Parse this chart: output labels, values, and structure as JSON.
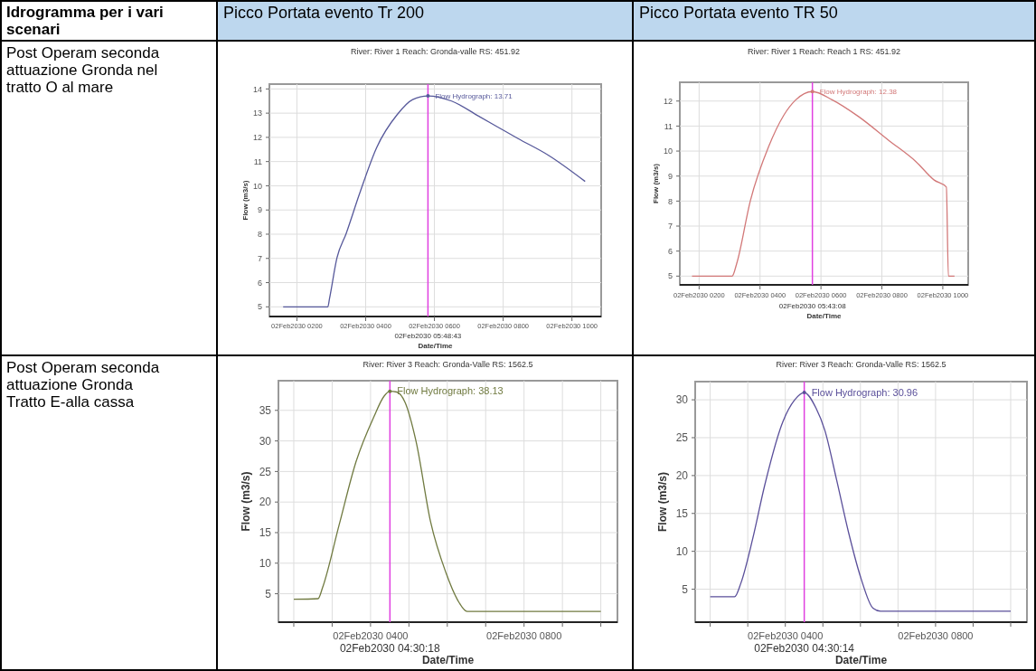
{
  "chart_data": [
    {
      "type": "other",
      "annotations": [
        "Idrogramma per i vari scenari",
        "Picco Portata evento Tr 200",
        "Picco Portata evento TR 50",
        "Post Operam seconda attuazione Gronda nel tratto O al mare",
        "Post Operam seconda attuazione Gronda Tratto E-alla cassa"
      ]
    },
    {
      "type": "line",
      "title": "River: River 1  Reach: Gronda-valle  RS: 451.92",
      "xlabel": "Date/Time",
      "ylabel": "Flow (m3/s)",
      "x": [
        "2030-02-02T01:36",
        "2030-02-02T02:54",
        "2030-02-02T02:57",
        "2030-02-02T03:10",
        "2030-02-02T03:26",
        "2030-02-02T03:49",
        "2030-02-02T04:19",
        "2030-02-02T04:55",
        "2030-02-02T05:22",
        "2030-02-02T05:48:43",
        "2030-02-02T06:30",
        "2030-02-02T07:17",
        "2030-02-02T07:54",
        "2030-02-02T08:26",
        "2030-02-02T09:19",
        "2030-02-02T10:23"
      ],
      "series": [
        {
          "color": "#56589a",
          "values": [
            5,
            5,
            5.35,
            7.03,
            8.03,
            9.65,
            11.57,
            12.94,
            13.56,
            13.71,
            13.5,
            12.88,
            12.38,
            11.95,
            11.26,
            10.18
          ]
        }
      ],
      "xlim": [
        "2030-02-02T01:12",
        "2030-02-02T10:51"
      ],
      "ylim": [
        4.6,
        14.2
      ],
      "xticks": [
        {
          "value": "2030-02-02T02:00",
          "label": "02Feb2030 0200"
        },
        {
          "value": "2030-02-02T04:00",
          "label": "02Feb2030 0400"
        },
        {
          "value": "2030-02-02T06:00",
          "label": "02Feb2030 0600"
        },
        {
          "value": "2030-02-02T08:00",
          "label": "02Feb2030 0800"
        },
        {
          "value": "2030-02-02T10:00",
          "label": "02Feb2030 1000"
        }
      ],
      "yticks": [
        5,
        6,
        7,
        8,
        9,
        10,
        11,
        12,
        13,
        14
      ],
      "grid": true,
      "ref_lines": [
        {
          "axis": "x",
          "value": "2030-02-02T05:48:43",
          "label": "02Feb2030 05:48:43",
          "color": "#e040e0"
        }
      ],
      "annotations": [
        {
          "text": "Flow Hydrograph: 13.71",
          "x": "2030-02-02T05:48:43",
          "y": 13.71
        }
      ]
    },
    {
      "type": "line",
      "title": "River: River 1  Reach: Reach 1  RS: 451.92",
      "xlabel": "Date/Time",
      "ylabel": "Flow (m3/s)",
      "x": [
        "2030-02-02T01:46",
        "2030-02-02T03:05",
        "2030-02-02T03:14",
        "2030-02-02T03:41",
        "2030-02-02T04:17",
        "2030-02-02T04:47",
        "2030-02-02T05:10",
        "2030-02-02T05:43:08",
        "2030-02-02T06:22",
        "2030-02-02T07:14",
        "2030-02-02T08:14",
        "2030-02-02T09:07",
        "2030-02-02T09:43",
        "2030-02-02T10:07",
        "2030-02-02T10:11",
        "2030-02-02T10:23"
      ],
      "series": [
        {
          "color": "#d27878",
          "values": [
            5,
            5,
            5.5,
            8.02,
            10.18,
            11.44,
            12.04,
            12.38,
            12.05,
            11.38,
            10.42,
            9.58,
            8.84,
            8.56,
            5,
            5
          ]
        }
      ],
      "xlim": [
        "2030-02-02T01:22",
        "2030-02-02T10:50"
      ],
      "ylim": [
        4.65,
        12.75
      ],
      "xticks": [
        {
          "value": "2030-02-02T02:00",
          "label": "02Feb2030 0200"
        },
        {
          "value": "2030-02-02T04:00",
          "label": "02Feb2030 0400"
        },
        {
          "value": "2030-02-02T06:00",
          "label": "02Feb2030 0600"
        },
        {
          "value": "2030-02-02T08:00",
          "label": "02Feb2030 0800"
        },
        {
          "value": "2030-02-02T10:00",
          "label": "02Feb2030 1000"
        }
      ],
      "yticks": [
        5,
        6,
        7,
        8,
        9,
        10,
        11,
        12
      ],
      "grid": true,
      "ref_lines": [
        {
          "axis": "x",
          "value": "2030-02-02T05:43:08",
          "label": "02Feb2030 05:43:08",
          "color": "#e040e0"
        }
      ],
      "annotations": [
        {
          "text": "Flow Hydrograph: 12.38",
          "x": "2030-02-02T05:43:08",
          "y": 12.38
        }
      ]
    },
    {
      "type": "line",
      "title": "River: River 3  Reach: Gronda-Valle  RS: 1562.5",
      "xlabel": "Date/Time",
      "ylabel": "Flow (m3/s)",
      "x": [
        "2030-02-02T02:00",
        "2030-02-02T02:38",
        "2030-02-02T02:45",
        "2030-02-02T03:11",
        "2030-02-02T03:37",
        "2030-02-02T04:05",
        "2030-02-02T04:21",
        "2030-02-02T04:30:18",
        "2030-02-02T04:41",
        "2030-02-02T04:54",
        "2030-02-02T05:11",
        "2030-02-02T05:34",
        "2030-02-02T05:58",
        "2030-02-02T06:16",
        "2030-02-02T06:31",
        "2030-02-02T10:00"
      ],
      "series": [
        {
          "color": "#707a40",
          "values": [
            4.1,
            4.2,
            6,
            16.3,
            26.5,
            33.9,
            37.3,
            38.13,
            38,
            36.3,
            30,
            16.7,
            8.4,
            4,
            2.1,
            2.1
          ]
        }
      ],
      "xlim": [
        "2030-02-02T01:36",
        "2030-02-02T10:26"
      ],
      "ylim": [
        0.35,
        39.85
      ],
      "xticks": [
        {
          "value": "2030-02-02T02:00",
          "label": null
        },
        {
          "value": "2030-02-02T03:00",
          "label": null
        },
        {
          "value": "2030-02-02T04:00",
          "label": "02Feb2030 0400"
        },
        {
          "value": "2030-02-02T05:00",
          "label": null
        },
        {
          "value": "2030-02-02T06:00",
          "label": null
        },
        {
          "value": "2030-02-02T07:00",
          "label": null
        },
        {
          "value": "2030-02-02T08:00",
          "label": "02Feb2030 0800"
        },
        {
          "value": "2030-02-02T09:00",
          "label": null
        },
        {
          "value": "2030-02-02T10:00",
          "label": null
        }
      ],
      "yticks": [
        5,
        10,
        15,
        20,
        25,
        30,
        35
      ],
      "grid": true,
      "ref_lines": [
        {
          "axis": "x",
          "value": "2030-02-02T04:30:18",
          "label": "02Feb2030 04:30:18",
          "color": "#e040e0"
        }
      ],
      "annotations": [
        {
          "text": "Flow Hydrograph: 38.13",
          "x": "2030-02-02T04:30:18",
          "y": 38.13
        }
      ]
    },
    {
      "type": "line",
      "title": "River: River 3  Reach: Gronda-Valle  RS: 1562.5",
      "xlabel": "Date/Time",
      "ylabel": "Flow (m3/s)",
      "x": [
        "2030-02-02T02:00",
        "2030-02-02T02:39",
        "2030-02-02T02:49",
        "2030-02-02T03:08",
        "2030-02-02T03:27",
        "2030-02-02T03:56",
        "2030-02-02T04:15",
        "2030-02-02T04:30:14",
        "2030-02-02T04:49",
        "2030-02-02T05:03",
        "2030-02-02T05:22",
        "2030-02-02T05:41",
        "2030-02-02T06:01",
        "2030-02-02T06:20",
        "2030-02-02T06:32",
        "2030-02-02T10:00"
      ],
      "series": [
        {
          "color": "#5a4f9a",
          "values": [
            4,
            4,
            5.8,
            11.7,
            18.7,
            27.1,
            30,
            30.96,
            28.9,
            26,
            19.4,
            12.5,
            6.4,
            2.5,
            2.1,
            2.1
          ]
        }
      ],
      "xlim": [
        "2030-02-02T01:36",
        "2030-02-02T10:26"
      ],
      "ylim": [
        0.65,
        32.4
      ],
      "xticks": [
        {
          "value": "2030-02-02T02:00",
          "label": null
        },
        {
          "value": "2030-02-02T03:00",
          "label": null
        },
        {
          "value": "2030-02-02T04:00",
          "label": "02Feb2030 0400"
        },
        {
          "value": "2030-02-02T05:00",
          "label": null
        },
        {
          "value": "2030-02-02T06:00",
          "label": null
        },
        {
          "value": "2030-02-02T07:00",
          "label": null
        },
        {
          "value": "2030-02-02T08:00",
          "label": "02Feb2030 0800"
        },
        {
          "value": "2030-02-02T09:00",
          "label": null
        },
        {
          "value": "2030-02-02T10:00",
          "label": null
        }
      ],
      "yticks": [
        5,
        10,
        15,
        20,
        25,
        30
      ],
      "grid": true,
      "ref_lines": [
        {
          "axis": "x",
          "value": "2030-02-02T04:30:14",
          "label": "02Feb2030 04:30:14",
          "color": "#e040e0"
        }
      ],
      "annotations": [
        {
          "text": "Flow Hydrograph: 30.96",
          "x": "2030-02-02T04:30:14",
          "y": 30.96
        }
      ]
    }
  ]
}
